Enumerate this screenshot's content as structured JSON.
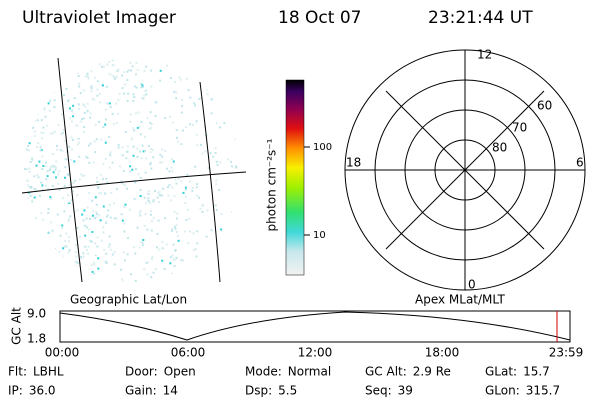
{
  "header": {
    "title": "Ultraviolet Imager",
    "date": "18 Oct 07",
    "time": "23:21:44 UT"
  },
  "image_panel": {
    "label": "Geographic Lat/Lon"
  },
  "colorbar": {
    "label": "photon cm⁻²s⁻¹",
    "ticks": [
      "100",
      "10"
    ]
  },
  "polar_panel": {
    "label": "Apex MLat/MLT",
    "mlt_labels": [
      "12",
      "18",
      "6",
      "0"
    ],
    "mlat_labels": [
      "80",
      "70",
      "60"
    ]
  },
  "altitude_plot": {
    "ylabel": "GC Alt",
    "yticks": [
      "9.0",
      "1.8"
    ],
    "xticks": [
      "00:00",
      "06:00",
      "12:00",
      "18:00",
      "23:59"
    ]
  },
  "footer": {
    "items": [
      {
        "label": "Flt:",
        "value": "LBHL"
      },
      {
        "label": "IP:",
        "value": "36.0"
      },
      {
        "label": "Door:",
        "value": "Open"
      },
      {
        "label": "Gain:",
        "value": "14"
      },
      {
        "label": "Mode:",
        "value": "Normal"
      },
      {
        "label": "Dsp:",
        "value": "5.5"
      },
      {
        "label": "GC Alt:",
        "value": "2.9 Re"
      },
      {
        "label": "Seq:",
        "value": "39"
      },
      {
        "label": "GLat:",
        "value": "15.7"
      },
      {
        "label": "GLon:",
        "value": "315.7"
      }
    ]
  }
}
